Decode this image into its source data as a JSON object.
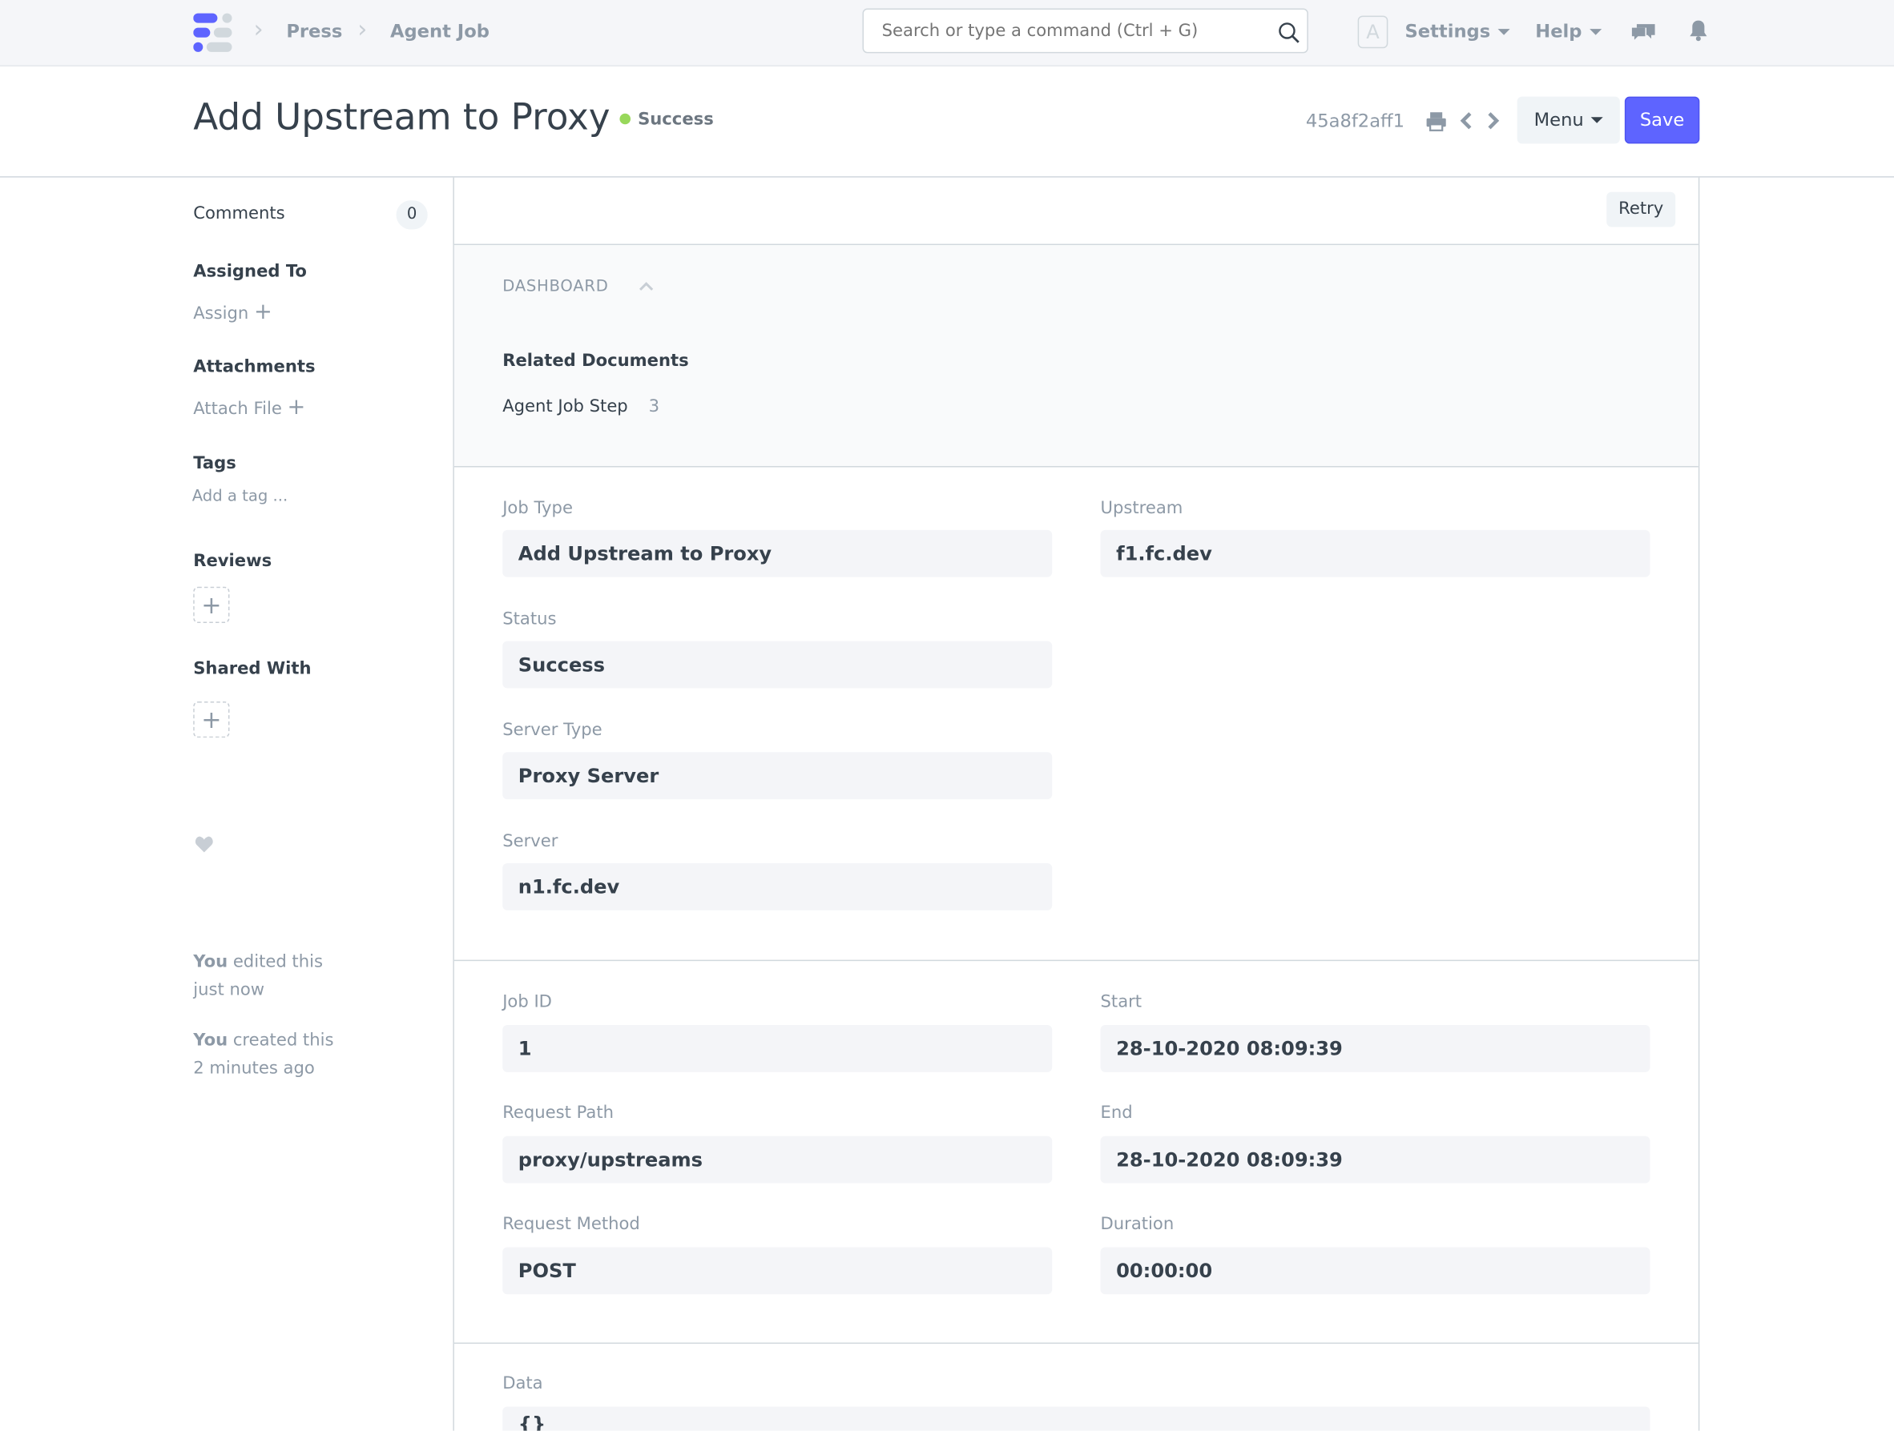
{
  "navbar": {
    "breadcrumbs": [
      "Press",
      "Agent Job"
    ],
    "search_placeholder": "Search or type a command (Ctrl + G)",
    "avatar_letter": "A",
    "settings": "Settings",
    "help": "Help"
  },
  "page": {
    "title": "Add Upstream to Proxy",
    "status": "Success",
    "status_color": "#98d85b",
    "doc_id": "45a8f2aff1",
    "menu": "Menu",
    "save": "Save",
    "accent": "#5e64ff"
  },
  "sidebar": {
    "comments": "Comments",
    "comments_count": "0",
    "assigned_to": "Assigned To",
    "assign": "Assign",
    "attachments": "Attachments",
    "attach_file": "Attach File",
    "tags": "Tags",
    "add_tag": "Add a tag ...",
    "reviews": "Reviews",
    "shared_with": "Shared With",
    "activity": [
      {
        "who": "You",
        "what": " edited this",
        "when": "just now"
      },
      {
        "who": "You",
        "what": " created this",
        "when": "2 minutes ago"
      }
    ]
  },
  "toolbar": {
    "retry": "Retry"
  },
  "dashboard": {
    "heading": "DASHBOARD",
    "related": "Related Documents",
    "link": "Agent Job Step",
    "link_count": "3"
  },
  "fields1": {
    "job_type": {
      "label": "Job Type",
      "value": "Add Upstream to Proxy"
    },
    "upstream": {
      "label": "Upstream",
      "value": "f1.fc.dev"
    },
    "status": {
      "label": "Status",
      "value": "Success"
    },
    "server_type": {
      "label": "Server Type",
      "value": "Proxy Server"
    },
    "server": {
      "label": "Server",
      "value": "n1.fc.dev"
    }
  },
  "fields2": {
    "job_id": {
      "label": "Job ID",
      "value": "1"
    },
    "start": {
      "label": "Start",
      "value": "28-10-2020 08:09:39"
    },
    "request_path": {
      "label": "Request Path",
      "value": "proxy/upstreams"
    },
    "end": {
      "label": "End",
      "value": "28-10-2020 08:09:39"
    },
    "request_method": {
      "label": "Request Method",
      "value": "POST"
    },
    "duration": {
      "label": "Duration",
      "value": "00:00:00"
    }
  },
  "fields3": {
    "data": {
      "label": "Data",
      "value": "{}"
    }
  }
}
